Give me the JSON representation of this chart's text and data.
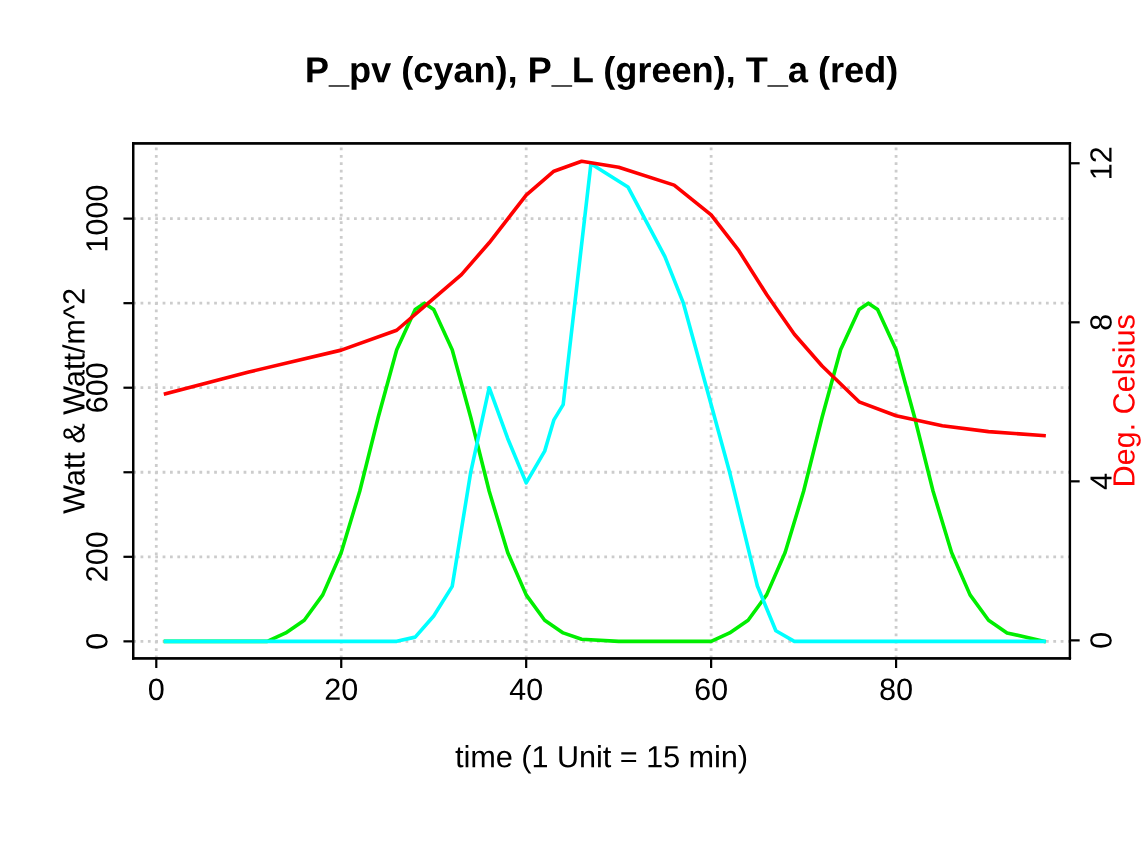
{
  "chart_data": {
    "type": "line",
    "title": "P_pv (cyan), P_L (green), T_a (red)",
    "xlabel": "time (1 Unit = 15 min)",
    "ylabel": "Watt & Watt/m^2",
    "y2label": "Deg. Celsius",
    "xlim": [
      -2.5,
      98.8
    ],
    "xticks": [
      0,
      20,
      40,
      60,
      80
    ],
    "ylim": [
      -40,
      1178
    ],
    "yticks": [
      0,
      200,
      {
        "value": 400,
        "label": null
      },
      600,
      {
        "value": 800,
        "label": null
      },
      1000
    ],
    "y2lim": [
      -0.45,
      12.5
    ],
    "y2ticks": [
      0,
      4,
      8,
      12
    ],
    "grid": true,
    "line_style": "solid",
    "series": [
      {
        "color": "#00ee00",
        "x": [
          1,
          12,
          14,
          16,
          18,
          20,
          22,
          24,
          26,
          28,
          29,
          30,
          32,
          34,
          36,
          38,
          40,
          42,
          44,
          46,
          50,
          60,
          62,
          64,
          66,
          68,
          70,
          72,
          74,
          76,
          77,
          78,
          80,
          82,
          84,
          86,
          88,
          90,
          92,
          96
        ],
        "values": [
          0,
          0,
          20,
          50,
          110,
          210,
          355,
          530,
          690,
          785,
          800,
          785,
          690,
          530,
          355,
          210,
          110,
          50,
          20,
          5,
          0,
          0,
          20,
          50,
          110,
          210,
          355,
          530,
          690,
          785,
          800,
          785,
          690,
          530,
          355,
          210,
          110,
          50,
          20,
          0
        ]
      },
      {
        "color": "#00ffff",
        "x": [
          1,
          26,
          28,
          30,
          32,
          34,
          36,
          38,
          40,
          42,
          43,
          44,
          47,
          51,
          55,
          57,
          59,
          62,
          65,
          67,
          69,
          96
        ],
        "values": [
          0,
          0,
          10,
          60,
          130,
          400,
          600,
          480,
          375,
          450,
          524,
          560,
          1130,
          1075,
          910,
          800,
          640,
          400,
          131,
          25,
          0,
          0
        ]
      },
      {
        "color": "#ff0000",
        "axis": "y2",
        "x": [
          1,
          10,
          20,
          26,
          29,
          33,
          36,
          40,
          43,
          46,
          50,
          56,
          60,
          63,
          66,
          69,
          72,
          76,
          80,
          85,
          90,
          96
        ],
        "values": [
          6.2,
          6.75,
          7.3,
          7.8,
          8.4,
          9.2,
          10.0,
          11.2,
          11.8,
          12.05,
          11.9,
          11.45,
          10.7,
          9.8,
          8.7,
          7.7,
          6.9,
          6.0,
          5.65,
          5.4,
          5.25,
          5.15
        ]
      }
    ]
  }
}
